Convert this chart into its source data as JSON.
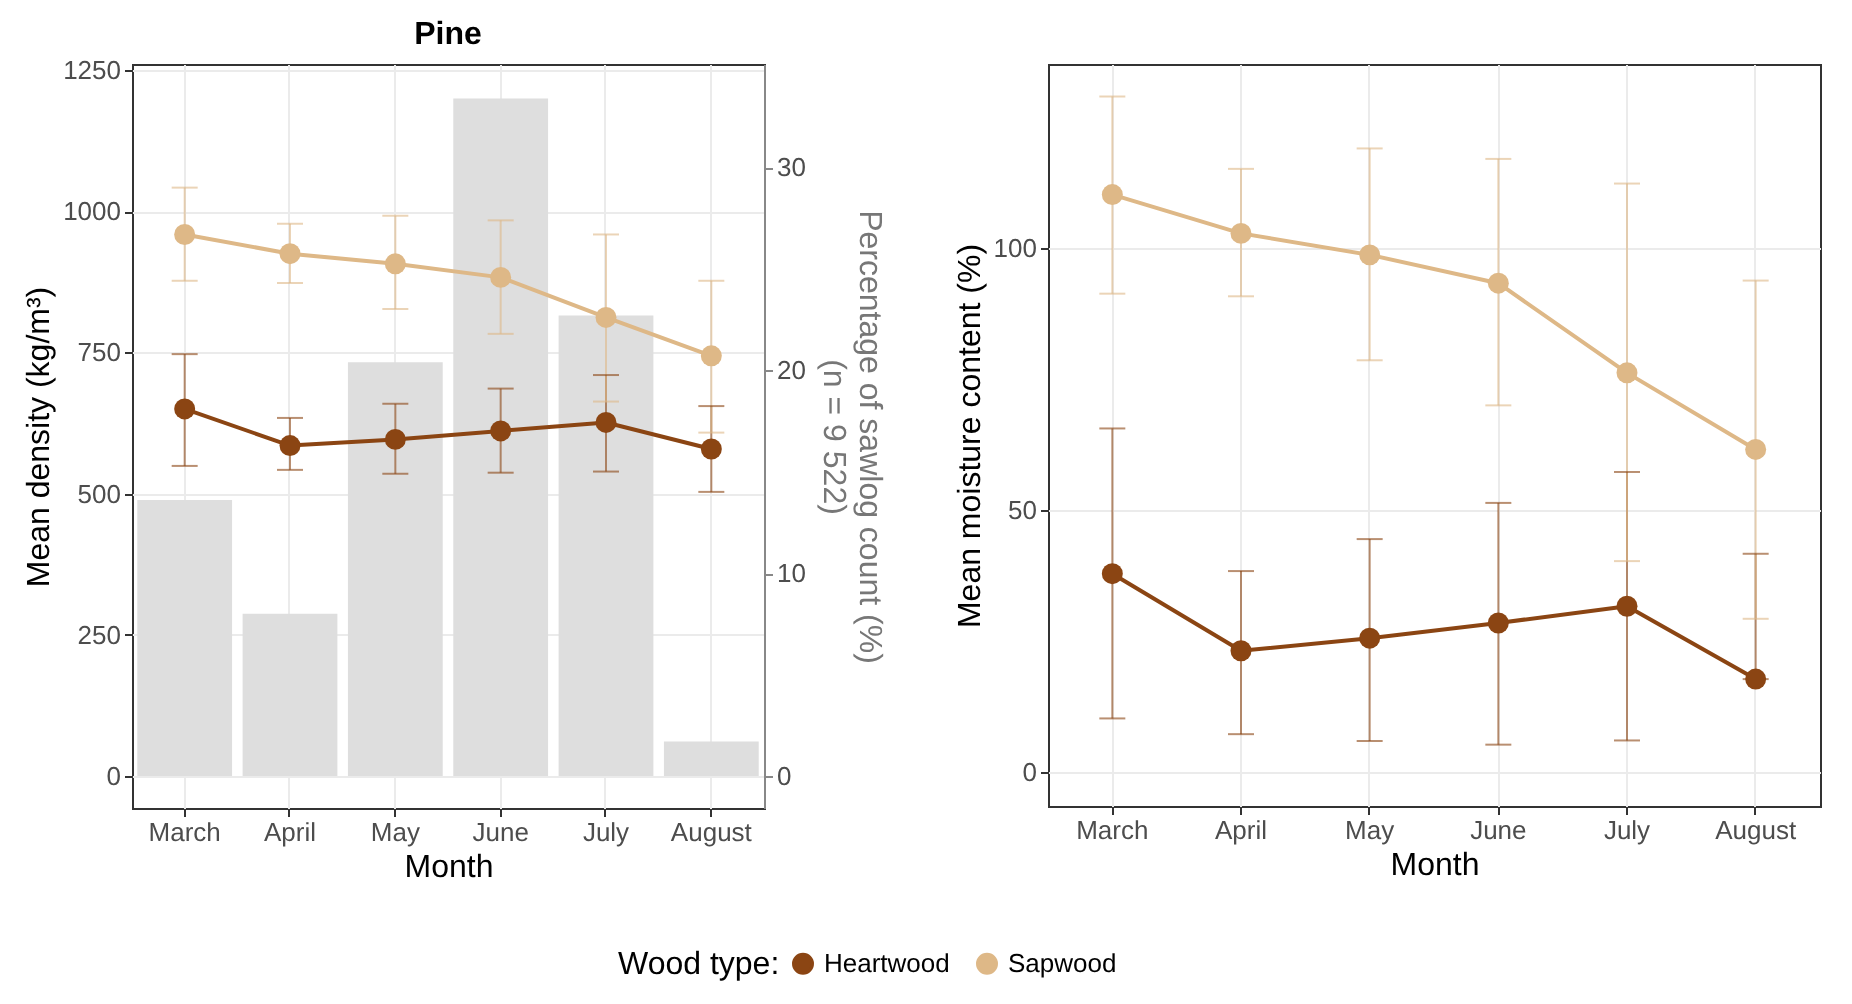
{
  "chart_data": [
    {
      "type": "line",
      "title": "Pine",
      "xlabel": "Month",
      "ylabel": "Mean density (kg/m³)",
      "y2label": "Percentage of sawlog count (%)\n(n = 9 522)",
      "legend_title": "Wood type:",
      "legend": "bottom",
      "grid": true,
      "marker": "circle",
      "line_style": "solid",
      "categories": [
        "March",
        "April",
        "May",
        "June",
        "July",
        "August"
      ],
      "ylim": [
        -57,
        1261
      ],
      "yticks": [
        0,
        250,
        500,
        750,
        1000,
        1250
      ],
      "y2lim": [
        -1.58,
        35.1
      ],
      "y2ticks": [
        0,
        10,
        20,
        30
      ],
      "series": [
        {
          "type": "bar",
          "axis": "y2",
          "color": "#dedede",
          "values": [
            13.6,
            8.0,
            20.4,
            33.4,
            22.7,
            1.7
          ]
        },
        {
          "name": "Heartwood",
          "color": "#8b4513",
          "values": [
            650,
            585,
            596,
            611,
            626,
            579
          ],
          "errors": [
            [
              549,
              747
            ],
            [
              542,
              634
            ],
            [
              535,
              659
            ],
            [
              537,
              686
            ],
            [
              539,
              710
            ],
            [
              503,
              655
            ]
          ]
        },
        {
          "name": "Sapwood",
          "color": "#deb887",
          "values": [
            959,
            925,
            907,
            883,
            812,
            744
          ],
          "errors": [
            [
              877,
              1042
            ],
            [
              873,
              978
            ],
            [
              827,
              992
            ],
            [
              783,
              984
            ],
            [
              663,
              959
            ],
            [
              608,
              877
            ]
          ]
        }
      ]
    },
    {
      "type": "line",
      "xlabel": "Month",
      "ylabel": "Mean moisture content (%)",
      "grid": true,
      "marker": "circle",
      "line_style": "solid",
      "categories": [
        "March",
        "April",
        "May",
        "June",
        "July",
        "August"
      ],
      "ylim": [
        -6.4,
        135.1
      ],
      "yticks": [
        0,
        50,
        100
      ],
      "series": [
        {
          "name": "Heartwood",
          "color": "#8b4513",
          "values": [
            37.9,
            23.2,
            25.6,
            28.5,
            31.7,
            17.8
          ],
          "errors": [
            [
              10.3,
              65.6
            ],
            [
              7.3,
              38.4
            ],
            [
              6.0,
              44.5
            ],
            [
              5.3,
              51.4
            ],
            [
              6.1,
              57.3
            ],
            [
              17.8,
              41.7
            ]
          ]
        },
        {
          "name": "Sapwood",
          "color": "#deb887",
          "values": [
            110.2,
            102.8,
            98.7,
            93.3,
            76.2,
            61.6
          ],
          "errors": [
            [
              91.3,
              128.9
            ],
            [
              90.8,
              115.1
            ],
            [
              78.6,
              119.0
            ],
            [
              70.0,
              117.0
            ],
            [
              40.3,
              112.3
            ],
            [
              29.3,
              93.8
            ]
          ]
        }
      ]
    }
  ]
}
